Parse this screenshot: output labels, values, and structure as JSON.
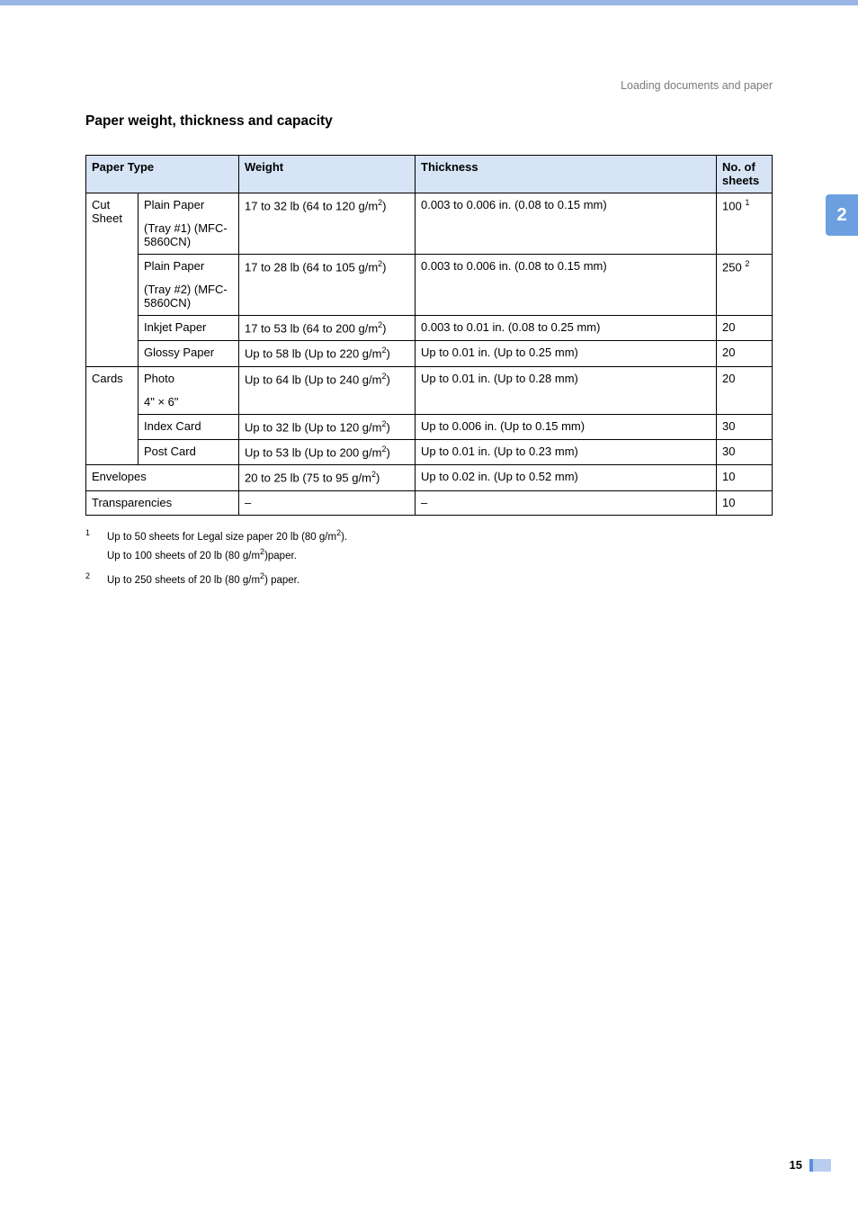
{
  "breadcrumb": "Loading documents and paper",
  "side_tab": "2",
  "page_number": "15",
  "section_title": "Paper weight, thickness and capacity",
  "headers": {
    "paper_type": "Paper Type",
    "weight": "Weight",
    "thickness": "Thickness",
    "sheets": "No. of sheets"
  },
  "rows": {
    "r1": {
      "cat": "Cut Sheet",
      "sub1": "Plain Paper",
      "sub2": "(Tray #1) (MFC-5860CN)",
      "weight_a": "17 to 32 lb (64 to 120 g/m",
      "weight_b": ")",
      "thickness": "0.003 to 0.006 in. (0.08 to 0.15 mm)",
      "sheets": "100",
      "sheets_sup": "1"
    },
    "r2": {
      "sub1": "Plain Paper",
      "sub2": "(Tray #2) (MFC-5860CN)",
      "weight_a": "17 to 28 lb (64 to 105 g/m",
      "weight_b": ")",
      "thickness": "0.003 to 0.006 in. (0.08 to 0.15 mm)",
      "sheets": "250",
      "sheets_sup": "2"
    },
    "r3": {
      "sub": "Inkjet Paper",
      "weight_a": "17 to 53 lb (64 to 200 g/m",
      "weight_b": ")",
      "thickness": "0.003 to 0.01 in. (0.08 to 0.25 mm)",
      "sheets": "20"
    },
    "r4": {
      "sub": "Glossy Paper",
      "weight_a": "Up to 58 lb (Up to 220 g/m",
      "weight_b": ")",
      "thickness": "Up to 0.01 in. (Up to 0.25 mm)",
      "sheets": "20"
    },
    "r5": {
      "cat": "Cards",
      "sub1": "Photo",
      "sub2": "4\" × 6\"",
      "weight_a": "Up to 64 lb (Up to 240 g/m",
      "weight_b": ")",
      "thickness": "Up to 0.01 in. (Up to 0.28 mm)",
      "sheets": "20"
    },
    "r6": {
      "sub": "Index Card",
      "weight_a": "Up to 32 lb (Up to 120 g/m",
      "weight_b": ")",
      "thickness": "Up to 0.006 in. (Up to 0.15 mm)",
      "sheets": "30"
    },
    "r7": {
      "sub": "Post Card",
      "weight_a": "Up to 53 lb (Up to 200 g/m",
      "weight_b": ")",
      "thickness": "Up to 0.01 in. (Up to 0.23 mm)",
      "sheets": "30"
    },
    "r8": {
      "cat": "Envelopes",
      "weight_a": "20 to 25 lb (75 to 95 g/m",
      "weight_b": ")",
      "thickness": "Up to 0.02 in. (Up to 0.52 mm)",
      "sheets": "10"
    },
    "r9": {
      "cat": "Transparencies",
      "weight": "–",
      "thickness": "–",
      "sheets": "10"
    }
  },
  "footnotes": {
    "f1": {
      "num": "1",
      "line_a": "Up to 50 sheets for Legal size paper 20 lb (80 g/m",
      "line_a2": ").",
      "line_b": "Up to 100 sheets of 20 lb (80 g/m",
      "line_b2": ")paper."
    },
    "f2": {
      "num": "2",
      "line_a": "Up to 250 sheets of 20 lb (80 g/m",
      "line_a2": ") paper."
    }
  },
  "sup2": "2"
}
